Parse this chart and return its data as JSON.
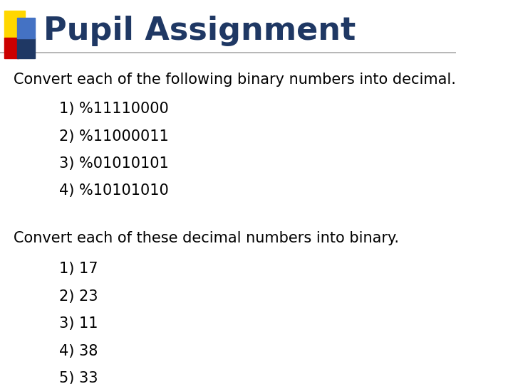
{
  "title": "Pupil Assignment",
  "title_color": "#1F3864",
  "title_fontsize": 32,
  "bg_color": "#FFFFFF",
  "header_line_color": "#AAAAAA",
  "body_text_color": "#000000",
  "body_fontsize": 15,
  "list_fontsize": 15,
  "section1_header": "Convert each of the following binary numbers into decimal.",
  "section1_items": [
    "1) %11110000",
    "2) %11000011",
    "3) %01010101",
    "4) %10101010"
  ],
  "section2_header": "Convert each of these decimal numbers into binary.",
  "section2_items": [
    "1) 17",
    "2) 23",
    "3) 11",
    "4) 38",
    "5) 33"
  ],
  "logo_colors": {
    "yellow": "#FFD700",
    "red": "#CC0000",
    "blue_light": "#4472C4",
    "blue_dark": "#1F3864"
  }
}
